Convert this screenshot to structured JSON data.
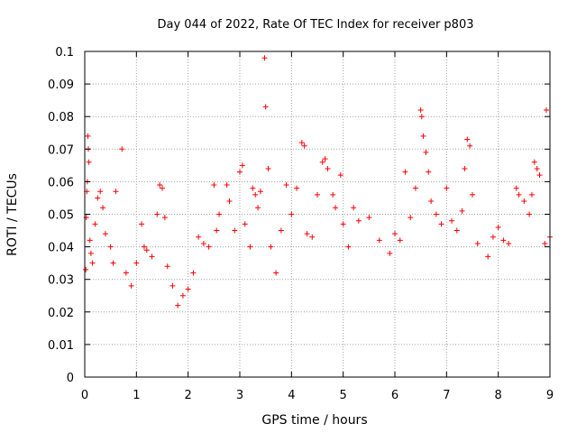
{
  "chart_data": {
    "type": "scatter",
    "title": "Day 044 of 2022, Rate Of TEC Index for receiver p803",
    "xlabel": "GPS time / hours",
    "ylabel": "ROTI / TECUs",
    "xlim": [
      0,
      9
    ],
    "ylim": [
      0,
      0.1
    ],
    "xticks": [
      "0",
      "1",
      "2",
      "3",
      "4",
      "5",
      "6",
      "7",
      "8",
      "9"
    ],
    "yticks": [
      "0",
      "0.01",
      "0.02",
      "0.03",
      "0.04",
      "0.05",
      "0.06",
      "0.07",
      "0.08",
      "0.09",
      "0.1"
    ],
    "grid": true,
    "marker": "plus",
    "color": "#ff0000",
    "series": [
      {
        "points": [
          [
            0.02,
            0.033
          ],
          [
            0.03,
            0.049
          ],
          [
            0.04,
            0.057
          ],
          [
            0.05,
            0.06
          ],
          [
            0.06,
            0.074
          ],
          [
            0.07,
            0.07
          ],
          [
            0.08,
            0.066
          ],
          [
            0.1,
            0.042
          ],
          [
            0.12,
            0.038
          ],
          [
            0.15,
            0.035
          ],
          [
            0.2,
            0.047
          ],
          [
            0.25,
            0.055
          ],
          [
            0.3,
            0.057
          ],
          [
            0.35,
            0.052
          ],
          [
            0.4,
            0.044
          ],
          [
            0.5,
            0.04
          ],
          [
            0.55,
            0.035
          ],
          [
            0.6,
            0.057
          ],
          [
            0.72,
            0.07
          ],
          [
            0.8,
            0.032
          ],
          [
            0.9,
            0.028
          ],
          [
            1.0,
            0.035
          ],
          [
            1.1,
            0.047
          ],
          [
            1.15,
            0.04
          ],
          [
            1.2,
            0.039
          ],
          [
            1.3,
            0.037
          ],
          [
            1.4,
            0.05
          ],
          [
            1.45,
            0.059
          ],
          [
            1.5,
            0.058
          ],
          [
            1.55,
            0.049
          ],
          [
            1.6,
            0.034
          ],
          [
            1.7,
            0.028
          ],
          [
            1.8,
            0.022
          ],
          [
            1.9,
            0.025
          ],
          [
            2.0,
            0.027
          ],
          [
            2.1,
            0.032
          ],
          [
            2.2,
            0.043
          ],
          [
            2.3,
            0.041
          ],
          [
            2.4,
            0.04
          ],
          [
            2.5,
            0.059
          ],
          [
            2.55,
            0.045
          ],
          [
            2.6,
            0.05
          ],
          [
            2.75,
            0.059
          ],
          [
            2.8,
            0.054
          ],
          [
            2.9,
            0.045
          ],
          [
            3.0,
            0.063
          ],
          [
            3.05,
            0.065
          ],
          [
            3.1,
            0.047
          ],
          [
            3.2,
            0.04
          ],
          [
            3.25,
            0.058
          ],
          [
            3.3,
            0.056
          ],
          [
            3.35,
            0.052
          ],
          [
            3.4,
            0.057
          ],
          [
            3.48,
            0.098
          ],
          [
            3.5,
            0.083
          ],
          [
            3.55,
            0.064
          ],
          [
            3.6,
            0.04
          ],
          [
            3.7,
            0.032
          ],
          [
            3.8,
            0.045
          ],
          [
            3.9,
            0.059
          ],
          [
            4.0,
            0.05
          ],
          [
            4.1,
            0.058
          ],
          [
            4.2,
            0.072
          ],
          [
            4.25,
            0.071
          ],
          [
            4.3,
            0.044
          ],
          [
            4.4,
            0.043
          ],
          [
            4.5,
            0.056
          ],
          [
            4.6,
            0.066
          ],
          [
            4.65,
            0.067
          ],
          [
            4.7,
            0.064
          ],
          [
            4.8,
            0.056
          ],
          [
            4.85,
            0.052
          ],
          [
            4.95,
            0.062
          ],
          [
            5.0,
            0.047
          ],
          [
            5.1,
            0.04
          ],
          [
            5.2,
            0.052
          ],
          [
            5.3,
            0.048
          ],
          [
            5.5,
            0.049
          ],
          [
            5.7,
            0.042
          ],
          [
            5.9,
            0.038
          ],
          [
            6.0,
            0.044
          ],
          [
            6.1,
            0.042
          ],
          [
            6.2,
            0.063
          ],
          [
            6.3,
            0.049
          ],
          [
            6.4,
            0.058
          ],
          [
            6.5,
            0.082
          ],
          [
            6.52,
            0.08
          ],
          [
            6.55,
            0.074
          ],
          [
            6.6,
            0.069
          ],
          [
            6.65,
            0.063
          ],
          [
            6.7,
            0.054
          ],
          [
            6.8,
            0.05
          ],
          [
            6.9,
            0.047
          ],
          [
            7.0,
            0.058
          ],
          [
            7.1,
            0.048
          ],
          [
            7.2,
            0.045
          ],
          [
            7.3,
            0.051
          ],
          [
            7.35,
            0.064
          ],
          [
            7.4,
            0.073
          ],
          [
            7.45,
            0.071
          ],
          [
            7.5,
            0.056
          ],
          [
            7.6,
            0.041
          ],
          [
            7.8,
            0.037
          ],
          [
            7.9,
            0.043
          ],
          [
            8.0,
            0.046
          ],
          [
            8.1,
            0.042
          ],
          [
            8.2,
            0.041
          ],
          [
            8.35,
            0.058
          ],
          [
            8.4,
            0.056
          ],
          [
            8.5,
            0.054
          ],
          [
            8.6,
            0.05
          ],
          [
            8.65,
            0.056
          ],
          [
            8.7,
            0.066
          ],
          [
            8.75,
            0.064
          ],
          [
            8.8,
            0.062
          ],
          [
            8.9,
            0.041
          ],
          [
            8.93,
            0.082
          ],
          [
            9.0,
            0.043
          ]
        ]
      }
    ]
  }
}
